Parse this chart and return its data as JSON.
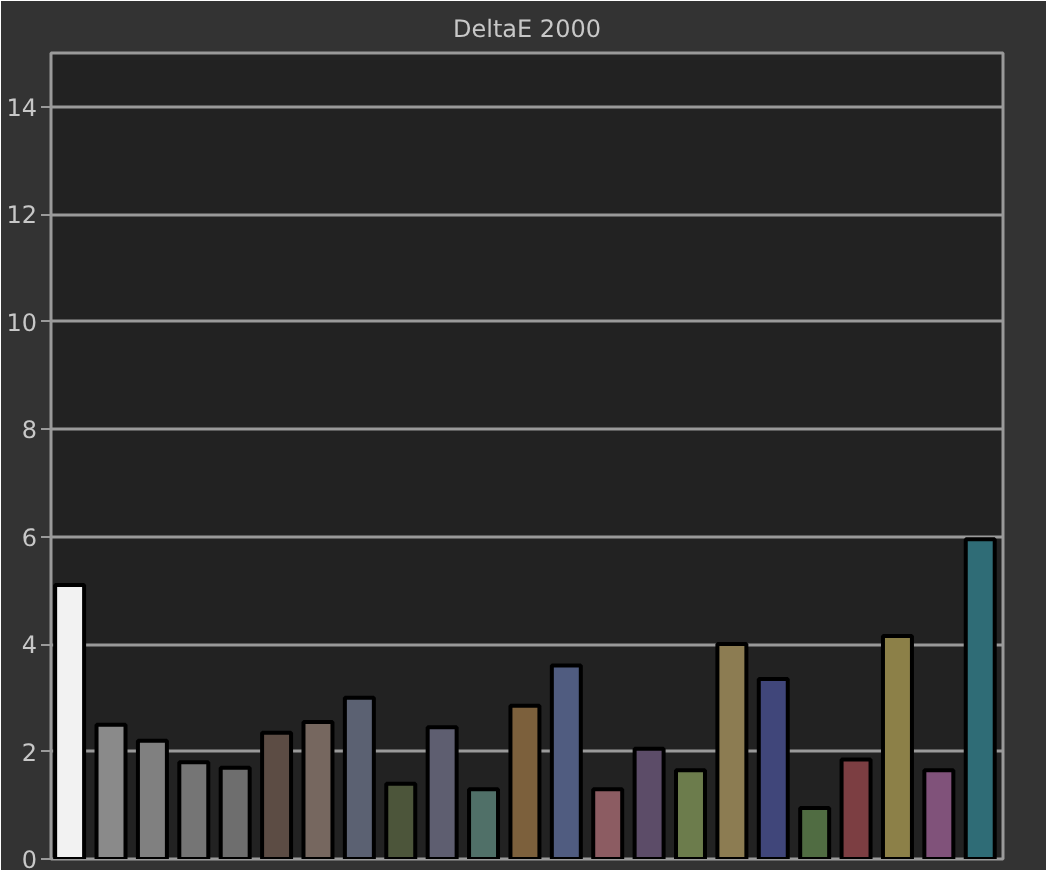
{
  "chart_data": {
    "type": "bar",
    "title": "DeltaE 2000",
    "categories": [
      null,
      null,
      null,
      null,
      null,
      null,
      null,
      null,
      null,
      null,
      null,
      null,
      null,
      null,
      null,
      null,
      null,
      null,
      null,
      null,
      null,
      null,
      null
    ],
    "values": [
      5.1,
      2.5,
      2.2,
      1.8,
      1.7,
      2.35,
      2.55,
      3.0,
      1.4,
      2.45,
      1.3,
      2.85,
      3.6,
      1.3,
      2.05,
      1.65,
      4.0,
      3.35,
      0.95,
      1.85,
      4.15,
      1.65,
      5.95
    ],
    "colors": [
      "#f2f2f2",
      "#8a8a8a",
      "#808080",
      "#757575",
      "#6e6e6e",
      "#5c4c44",
      "#76675f",
      "#5b6172",
      "#4c553a",
      "#5e5e70",
      "#507068",
      "#7c603c",
      "#505c80",
      "#8c5c62",
      "#5c4c68",
      "#6c7c4c",
      "#8c7c52",
      "#40467a",
      "#506c42",
      "#7c3e42",
      "#8c8048",
      "#80527a",
      "#2f6c76"
    ],
    "ylim": [
      0,
      15
    ],
    "yticks": [
      0,
      2,
      4,
      6,
      8,
      10,
      12,
      14
    ],
    "grid": "y",
    "tick_labels": "y"
  }
}
